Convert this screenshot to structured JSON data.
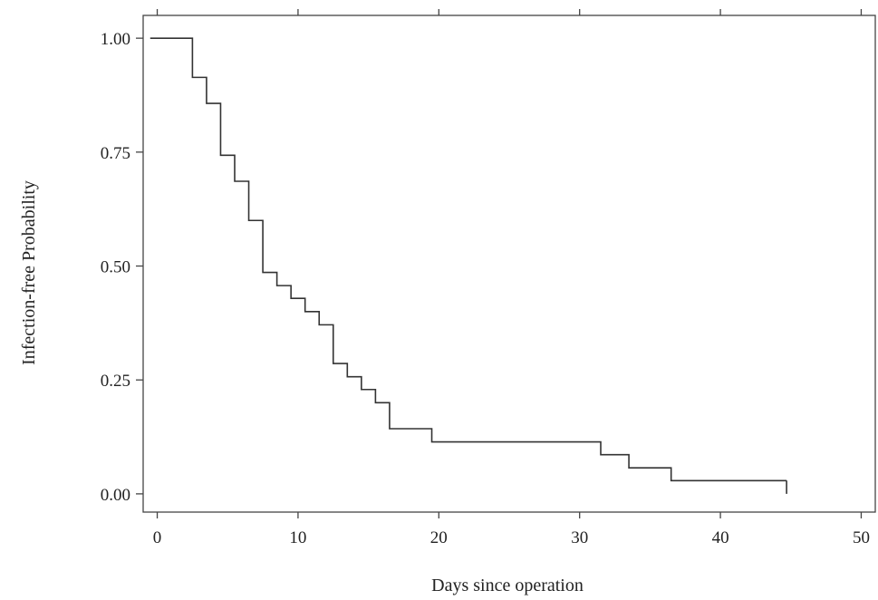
{
  "chart_data": {
    "type": "line",
    "title": "",
    "xlabel": "Days since operation",
    "ylabel": "Infection-free Probability",
    "xlim": [
      -1,
      51
    ],
    "ylim": [
      -0.04,
      1.05
    ],
    "x_ticks": [
      0,
      10,
      20,
      30,
      40,
      50
    ],
    "y_ticks": [
      0.0,
      0.25,
      0.5,
      0.75,
      1.0
    ],
    "x_tick_labels": [
      "0",
      "10",
      "20",
      "30",
      "40",
      "50"
    ],
    "y_tick_labels": [
      "0.00",
      "0.25",
      "0.50",
      "0.75",
      "1.00"
    ],
    "grid": false,
    "step": "post",
    "series": [
      {
        "x": [
          -0.5,
          2.5,
          3.5,
          4.5,
          5.5,
          6.5,
          7.5,
          8.5,
          9.5,
          10.5,
          11.5,
          12.5,
          13.5,
          14.5,
          15.5,
          16.5,
          19.5,
          31.5,
          33.5,
          36.5,
          44.7
        ],
        "y": [
          1.0,
          0.914,
          0.857,
          0.743,
          0.686,
          0.6,
          0.486,
          0.457,
          0.429,
          0.4,
          0.371,
          0.286,
          0.257,
          0.229,
          0.2,
          0.143,
          0.114,
          0.086,
          0.057,
          0.029,
          0.029
        ]
      }
    ],
    "censor_at_end": [
      44.7,
      0.029,
      0.0
    ]
  }
}
